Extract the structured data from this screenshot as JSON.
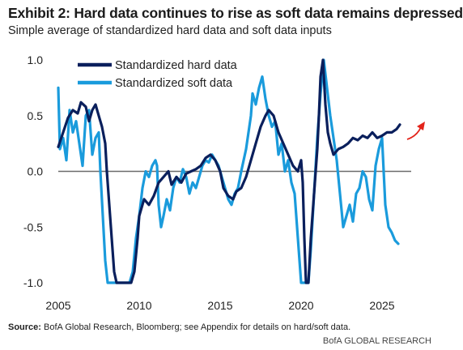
{
  "header": {
    "title": "Exhibit 2: Hard data continues to rise as soft data remains depressed",
    "subtitle": "Simple average of standardized hard data and soft data inputs"
  },
  "footer": {
    "source_label": "Source:",
    "source_text": " BofA Global Research, Bloomberg; see Appendix for details on hard/soft data.",
    "credit": "BofA GLOBAL RESEARCH"
  },
  "chart_data": {
    "type": "line",
    "title": "Exhibit 2: Hard data continues to rise as soft data remains depressed",
    "subtitle": "Simple average of standardized hard data and soft data inputs",
    "xlabel": "",
    "ylabel": "",
    "xlim": [
      2005,
      2026.8
    ],
    "ylim": [
      -1.0,
      1.0
    ],
    "x_ticks": [
      2005,
      2010,
      2015,
      2020,
      2025
    ],
    "x_tick_labels": [
      "2005",
      "2010",
      "2015",
      "2020",
      "2025"
    ],
    "y_ticks": [
      1.0,
      0.5,
      0.0,
      -0.5,
      -1.0
    ],
    "y_tick_labels": [
      "1.0",
      "0.5",
      "0.0",
      "-0.5",
      "-1.0"
    ],
    "zero_line": true,
    "grid": false,
    "legend": "top-center",
    "annotation": "red arrow pointing up-right at the end of the hard data series",
    "colors": {
      "hard": "#0a1f5c",
      "soft": "#1a9bdc",
      "arrow": "#e3241b",
      "zero": "#6b6b6b"
    },
    "series": [
      {
        "name": "Standardized hard data",
        "x": [
          2005.0,
          2005.3,
          2005.6,
          2005.9,
          2006.2,
          2006.4,
          2006.7,
          2006.9,
          2007.1,
          2007.3,
          2007.5,
          2007.7,
          2007.9,
          2008.0,
          2008.15,
          2008.3,
          2008.45,
          2008.6,
          2008.8,
          2009.2,
          2009.5,
          2009.7,
          2009.9,
          2010.0,
          2010.3,
          2010.6,
          2010.9,
          2011.2,
          2011.5,
          2011.8,
          2012.0,
          2012.3,
          2012.6,
          2012.9,
          2013.2,
          2013.5,
          2013.8,
          2014.1,
          2014.4,
          2014.7,
          2015.0,
          2015.2,
          2015.5,
          2015.8,
          2016.0,
          2016.3,
          2016.6,
          2016.9,
          2017.2,
          2017.5,
          2017.8,
          2018.0,
          2018.3,
          2018.6,
          2018.9,
          2019.2,
          2019.5,
          2019.8,
          2020.0,
          2020.1,
          2020.2,
          2020.3,
          2020.45,
          2020.6,
          2020.8,
          2021.0,
          2021.1,
          2021.2,
          2021.35,
          2021.5,
          2021.65,
          2021.8,
          2022.0,
          2022.3,
          2022.6,
          2022.9,
          2023.2,
          2023.5,
          2023.8,
          2024.1,
          2024.4,
          2024.7,
          2025.0,
          2025.3,
          2025.6,
          2025.9,
          2026.1
        ],
        "values": [
          0.22,
          0.35,
          0.48,
          0.55,
          0.52,
          0.62,
          0.58,
          0.45,
          0.55,
          0.6,
          0.5,
          0.4,
          0.25,
          0.0,
          -0.3,
          -0.6,
          -0.9,
          -1.0,
          -1.0,
          -1.0,
          -1.0,
          -0.9,
          -0.6,
          -0.4,
          -0.25,
          -0.3,
          -0.22,
          -0.1,
          -0.05,
          0.0,
          -0.12,
          -0.05,
          -0.1,
          -0.02,
          0.0,
          0.02,
          0.05,
          0.12,
          0.15,
          0.1,
          0.0,
          -0.15,
          -0.22,
          -0.25,
          -0.18,
          -0.15,
          -0.05,
          0.1,
          0.25,
          0.4,
          0.5,
          0.55,
          0.5,
          0.35,
          0.25,
          0.15,
          0.05,
          0.0,
          0.1,
          -0.1,
          -0.6,
          -1.0,
          -1.0,
          -0.6,
          -0.2,
          0.2,
          0.5,
          0.85,
          1.0,
          0.6,
          0.35,
          0.25,
          0.15,
          0.2,
          0.22,
          0.25,
          0.3,
          0.28,
          0.32,
          0.3,
          0.35,
          0.3,
          0.32,
          0.35,
          0.35,
          0.38,
          0.42
        ]
      },
      {
        "name": "Standardized soft data",
        "x": [
          2005.0,
          2005.1,
          2005.3,
          2005.5,
          2005.7,
          2005.9,
          2006.1,
          2006.3,
          2006.5,
          2006.7,
          2006.9,
          2007.1,
          2007.3,
          2007.5,
          2007.6,
          2007.75,
          2007.9,
          2008.05,
          2008.2,
          2008.4,
          2008.6,
          2008.9,
          2009.1,
          2009.4,
          2009.6,
          2009.8,
          2010.0,
          2010.2,
          2010.4,
          2010.6,
          2010.8,
          2011.0,
          2011.1,
          2011.2,
          2011.35,
          2011.5,
          2011.7,
          2011.9,
          2012.1,
          2012.3,
          2012.5,
          2012.7,
          2012.9,
          2013.1,
          2013.3,
          2013.5,
          2013.7,
          2013.9,
          2014.1,
          2014.3,
          2014.5,
          2014.7,
          2014.9,
          2015.1,
          2015.3,
          2015.5,
          2015.7,
          2015.9,
          2016.1,
          2016.3,
          2016.6,
          2016.9,
          2017.0,
          2017.2,
          2017.4,
          2017.6,
          2017.8,
          2018.0,
          2018.2,
          2018.4,
          2018.6,
          2018.8,
          2019.0,
          2019.2,
          2019.4,
          2019.6,
          2019.8,
          2020.0,
          2020.1,
          2020.2,
          2020.3,
          2020.45,
          2020.6,
          2020.8,
          2021.0,
          2021.2,
          2021.4,
          2021.6,
          2021.8,
          2022.0,
          2022.2,
          2022.4,
          2022.6,
          2022.8,
          2023.0,
          2023.2,
          2023.4,
          2023.6,
          2023.8,
          2024.0,
          2024.2,
          2024.4,
          2024.6,
          2024.8,
          2025.0,
          2025.2,
          2025.4,
          2025.6,
          2025.8,
          2026.0
        ],
        "values": [
          0.75,
          0.2,
          0.3,
          0.1,
          0.55,
          0.35,
          0.45,
          0.25,
          0.05,
          0.5,
          0.55,
          0.15,
          0.3,
          0.35,
          0.0,
          -0.4,
          -0.8,
          -1.0,
          -1.0,
          -1.0,
          -1.0,
          -1.0,
          -1.0,
          -1.0,
          -0.9,
          -0.6,
          -0.4,
          -0.15,
          0.0,
          -0.05,
          0.05,
          0.1,
          0.05,
          -0.3,
          -0.5,
          -0.4,
          -0.25,
          -0.35,
          -0.15,
          -0.05,
          -0.1,
          0.02,
          -0.05,
          -0.2,
          -0.1,
          -0.15,
          -0.05,
          0.05,
          0.1,
          0.08,
          0.15,
          0.1,
          0.05,
          -0.05,
          -0.15,
          -0.25,
          -0.3,
          -0.2,
          -0.15,
          0.0,
          0.2,
          0.5,
          0.7,
          0.6,
          0.75,
          0.85,
          0.65,
          0.5,
          0.4,
          0.45,
          0.15,
          0.25,
          0.0,
          0.1,
          -0.1,
          -0.2,
          -0.6,
          -1.0,
          -1.0,
          -1.0,
          -1.0,
          -1.0,
          -0.7,
          -0.2,
          0.3,
          0.7,
          1.0,
          0.75,
          0.5,
          0.3,
          0.1,
          -0.2,
          -0.5,
          -0.4,
          -0.3,
          -0.45,
          -0.2,
          -0.15,
          0.0,
          -0.05,
          -0.25,
          -0.35,
          0.05,
          0.2,
          0.3,
          -0.3,
          -0.5,
          -0.55,
          -0.62,
          -0.65
        ]
      }
    ]
  }
}
